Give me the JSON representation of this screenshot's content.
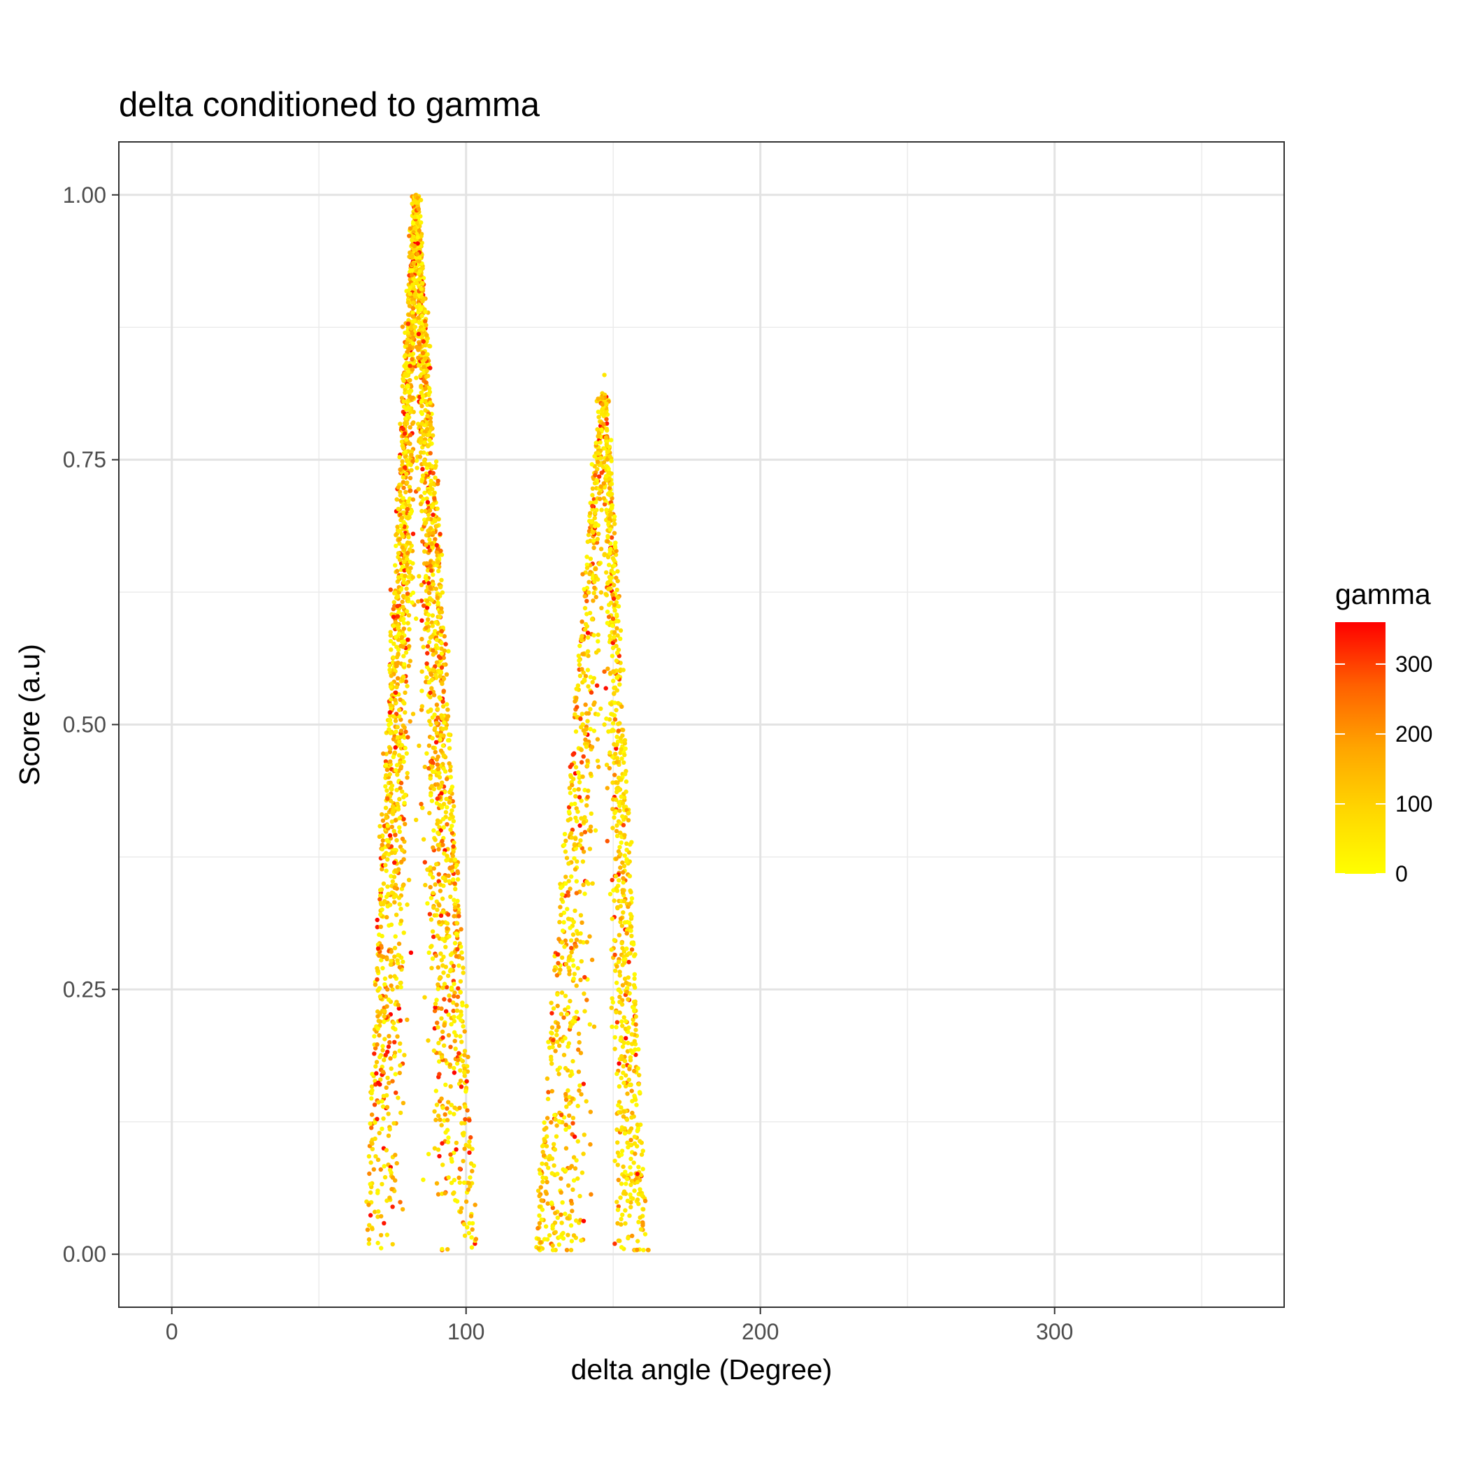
{
  "chart_data": {
    "type": "scatter",
    "title": "delta conditioned to gamma",
    "xlabel": "delta angle (Degree)",
    "ylabel": "Score (a.u)",
    "xlim": [
      -18,
      378
    ],
    "ylim": [
      -0.05,
      1.05
    ],
    "x_ticks": [
      0,
      100,
      200,
      300
    ],
    "x_tick_labels": [
      "0",
      "100",
      "200",
      "300"
    ],
    "x_minor_ticks": [
      50,
      150,
      250,
      350
    ],
    "y_ticks": [
      0,
      0.25,
      0.5,
      0.75,
      1.0
    ],
    "y_tick_labels": [
      "0.00",
      "0.25",
      "0.50",
      "0.75",
      "1.00"
    ],
    "y_minor_ticks": [
      0.125,
      0.375,
      0.625,
      0.875
    ],
    "grid": true,
    "color_legend": {
      "title": "gamma",
      "position": "right",
      "min": 0,
      "max": 360,
      "ticks": [
        0,
        100,
        200,
        300
      ],
      "tick_labels": [
        "0",
        "100",
        "200",
        "300"
      ],
      "colors": [
        "#ffff00",
        "#ffd700",
        "#ffa500",
        "#ff6000",
        "#ff0000"
      ]
    },
    "series": [
      {
        "clusters": [
          {
            "peak_x": 83,
            "peak_y": 1.0,
            "x_min": 66,
            "x_max": 103
          },
          {
            "peak_x": 147,
            "peak_y": 0.83,
            "x_min": 124,
            "x_max": 161
          }
        ],
        "points": [
          [
            83,
            1.0
          ],
          [
            83,
            0.98
          ],
          [
            82,
            0.96
          ],
          [
            84,
            0.95
          ],
          [
            83,
            0.93
          ],
          [
            82,
            0.91
          ],
          [
            84,
            0.9
          ],
          [
            81,
            0.88
          ],
          [
            85,
            0.87
          ],
          [
            82,
            0.85
          ],
          [
            84,
            0.84
          ],
          [
            81,
            0.82
          ],
          [
            85,
            0.81
          ],
          [
            80,
            0.8
          ],
          [
            84,
            0.78
          ],
          [
            82,
            0.76
          ],
          [
            86,
            0.75
          ],
          [
            80,
            0.74
          ],
          [
            83,
            0.72
          ],
          [
            85,
            0.71
          ],
          [
            79,
            0.7
          ],
          [
            82,
            0.68
          ],
          [
            86,
            0.67
          ],
          [
            80,
            0.66
          ],
          [
            84,
            0.64
          ],
          [
            87,
            0.63
          ],
          [
            79,
            0.62
          ],
          [
            83,
            0.6
          ],
          [
            86,
            0.59
          ],
          [
            78,
            0.58
          ],
          [
            81,
            0.56
          ],
          [
            85,
            0.55
          ],
          [
            87,
            0.54
          ],
          [
            79,
            0.52
          ],
          [
            82,
            0.51
          ],
          [
            88,
            0.5
          ],
          [
            78,
            0.49
          ],
          [
            84,
            0.48
          ],
          [
            86,
            0.46
          ],
          [
            80,
            0.45
          ],
          [
            88,
            0.44
          ],
          [
            77,
            0.42
          ],
          [
            83,
            0.41
          ],
          [
            89,
            0.4
          ],
          [
            79,
            0.38
          ],
          [
            86,
            0.37
          ],
          [
            77,
            0.36
          ],
          [
            89,
            0.34
          ],
          [
            80,
            0.33
          ],
          [
            90,
            0.32
          ],
          [
            76,
            0.3
          ],
          [
            88,
            0.29
          ],
          [
            78,
            0.28
          ],
          [
            91,
            0.26
          ],
          [
            75,
            0.25
          ],
          [
            90,
            0.24
          ],
          [
            77,
            0.22
          ],
          [
            92,
            0.21
          ],
          [
            74,
            0.2
          ],
          [
            91,
            0.19
          ],
          [
            76,
            0.17
          ],
          [
            93,
            0.16
          ],
          [
            73,
            0.15
          ],
          [
            92,
            0.14
          ],
          [
            74,
            0.12
          ],
          [
            94,
            0.11
          ],
          [
            72,
            0.1
          ],
          [
            95,
            0.09
          ],
          [
            71,
            0.08
          ],
          [
            96,
            0.07
          ],
          [
            70,
            0.06
          ],
          [
            97,
            0.05
          ],
          [
            69,
            0.04
          ],
          [
            99,
            0.03
          ],
          [
            68,
            0.025
          ],
          [
            101,
            0.02
          ],
          [
            67,
            0.01
          ],
          [
            103,
            0.01
          ],
          [
            93,
            0.29
          ],
          [
            96,
            0.22
          ],
          [
            97,
            0.18
          ],
          [
            147,
            0.83
          ],
          [
            147,
            0.81
          ],
          [
            146,
            0.78
          ],
          [
            148,
            0.77
          ],
          [
            145,
            0.76
          ],
          [
            147,
            0.74
          ],
          [
            146,
            0.72
          ],
          [
            148,
            0.7
          ],
          [
            145,
            0.68
          ],
          [
            147,
            0.66
          ],
          [
            144,
            0.64
          ],
          [
            148,
            0.63
          ],
          [
            146,
            0.61
          ],
          [
            143,
            0.6
          ],
          [
            149,
            0.58
          ],
          [
            145,
            0.57
          ],
          [
            147,
            0.55
          ],
          [
            143,
            0.54
          ],
          [
            149,
            0.52
          ],
          [
            144,
            0.51
          ],
          [
            147,
            0.5
          ],
          [
            142,
            0.48
          ],
          [
            150,
            0.47
          ],
          [
            145,
            0.46
          ],
          [
            148,
            0.44
          ],
          [
            141,
            0.43
          ],
          [
            151,
            0.42
          ],
          [
            144,
            0.4
          ],
          [
            148,
            0.39
          ],
          [
            140,
            0.38
          ],
          [
            152,
            0.36
          ],
          [
            143,
            0.35
          ],
          [
            149,
            0.34
          ],
          [
            139,
            0.32
          ],
          [
            153,
            0.31
          ],
          [
            142,
            0.3
          ],
          [
            150,
            0.28
          ],
          [
            138,
            0.27
          ],
          [
            154,
            0.26
          ],
          [
            141,
            0.24
          ],
          [
            151,
            0.23
          ],
          [
            137,
            0.22
          ],
          [
            155,
            0.21
          ],
          [
            139,
            0.19
          ],
          [
            152,
            0.18
          ],
          [
            136,
            0.17
          ],
          [
            156,
            0.16
          ],
          [
            138,
            0.14
          ],
          [
            157,
            0.13
          ],
          [
            135,
            0.12
          ],
          [
            158,
            0.11
          ],
          [
            134,
            0.1
          ],
          [
            156,
            0.09
          ],
          [
            133,
            0.08
          ],
          [
            159,
            0.07
          ],
          [
            132,
            0.06
          ],
          [
            158,
            0.05
          ],
          [
            131,
            0.04
          ],
          [
            160,
            0.03
          ],
          [
            130,
            0.02
          ],
          [
            124,
            0.015
          ],
          [
            129,
            0.01
          ]
        ]
      }
    ]
  }
}
